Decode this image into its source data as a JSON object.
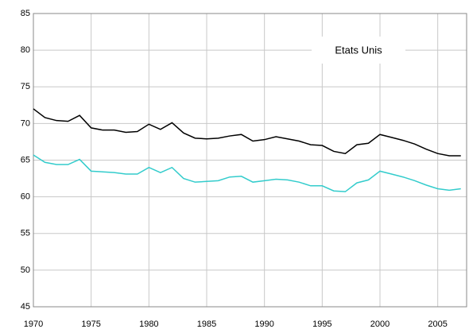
{
  "chart_data": {
    "type": "line",
    "annotation": "Etats Unis",
    "x": [
      1970,
      1971,
      1972,
      1973,
      1974,
      1975,
      1976,
      1977,
      1978,
      1979,
      1980,
      1981,
      1982,
      1983,
      1984,
      1985,
      1986,
      1987,
      1988,
      1989,
      1990,
      1991,
      1992,
      1993,
      1994,
      1995,
      1996,
      1997,
      1998,
      1999,
      2000,
      2001,
      2002,
      2003,
      2004,
      2005,
      2006,
      2007
    ],
    "series": [
      {
        "color": "#000000",
        "values": [
          72,
          70.8,
          70.4,
          70.3,
          71.1,
          69.4,
          69.1,
          69.1,
          68.8,
          68.9,
          69.9,
          69.2,
          70.1,
          68.7,
          68.0,
          67.9,
          68.0,
          68.3,
          68.5,
          67.6,
          67.8,
          68.2,
          67.9,
          67.6,
          67.1,
          67.0,
          66.2,
          65.9,
          67.1,
          67.3,
          68.5,
          68.1,
          67.7,
          67.2,
          66.5,
          65.9,
          65.6,
          65.6
        ]
      },
      {
        "color": "#33cccc",
        "values": [
          65.7,
          64.7,
          64.4,
          64.4,
          65.1,
          63.5,
          63.4,
          63.3,
          63.1,
          63.1,
          64.0,
          63.3,
          64.0,
          62.5,
          62.0,
          62.1,
          62.2,
          62.7,
          62.8,
          62.0,
          62.2,
          62.4,
          62.3,
          62.0,
          61.5,
          61.5,
          60.8,
          60.7,
          61.9,
          62.3,
          63.5,
          63.1,
          62.7,
          62.2,
          61.6,
          61.1,
          60.9,
          61.1
        ]
      }
    ],
    "xlim": [
      1970,
      2007.5
    ],
    "xticks": [
      1970,
      1975,
      1980,
      1985,
      1990,
      1995,
      2000,
      2005
    ],
    "ylim": [
      45,
      85
    ],
    "yticks": [
      45,
      50,
      55,
      60,
      65,
      70,
      75,
      80,
      85
    ],
    "grid": true
  }
}
